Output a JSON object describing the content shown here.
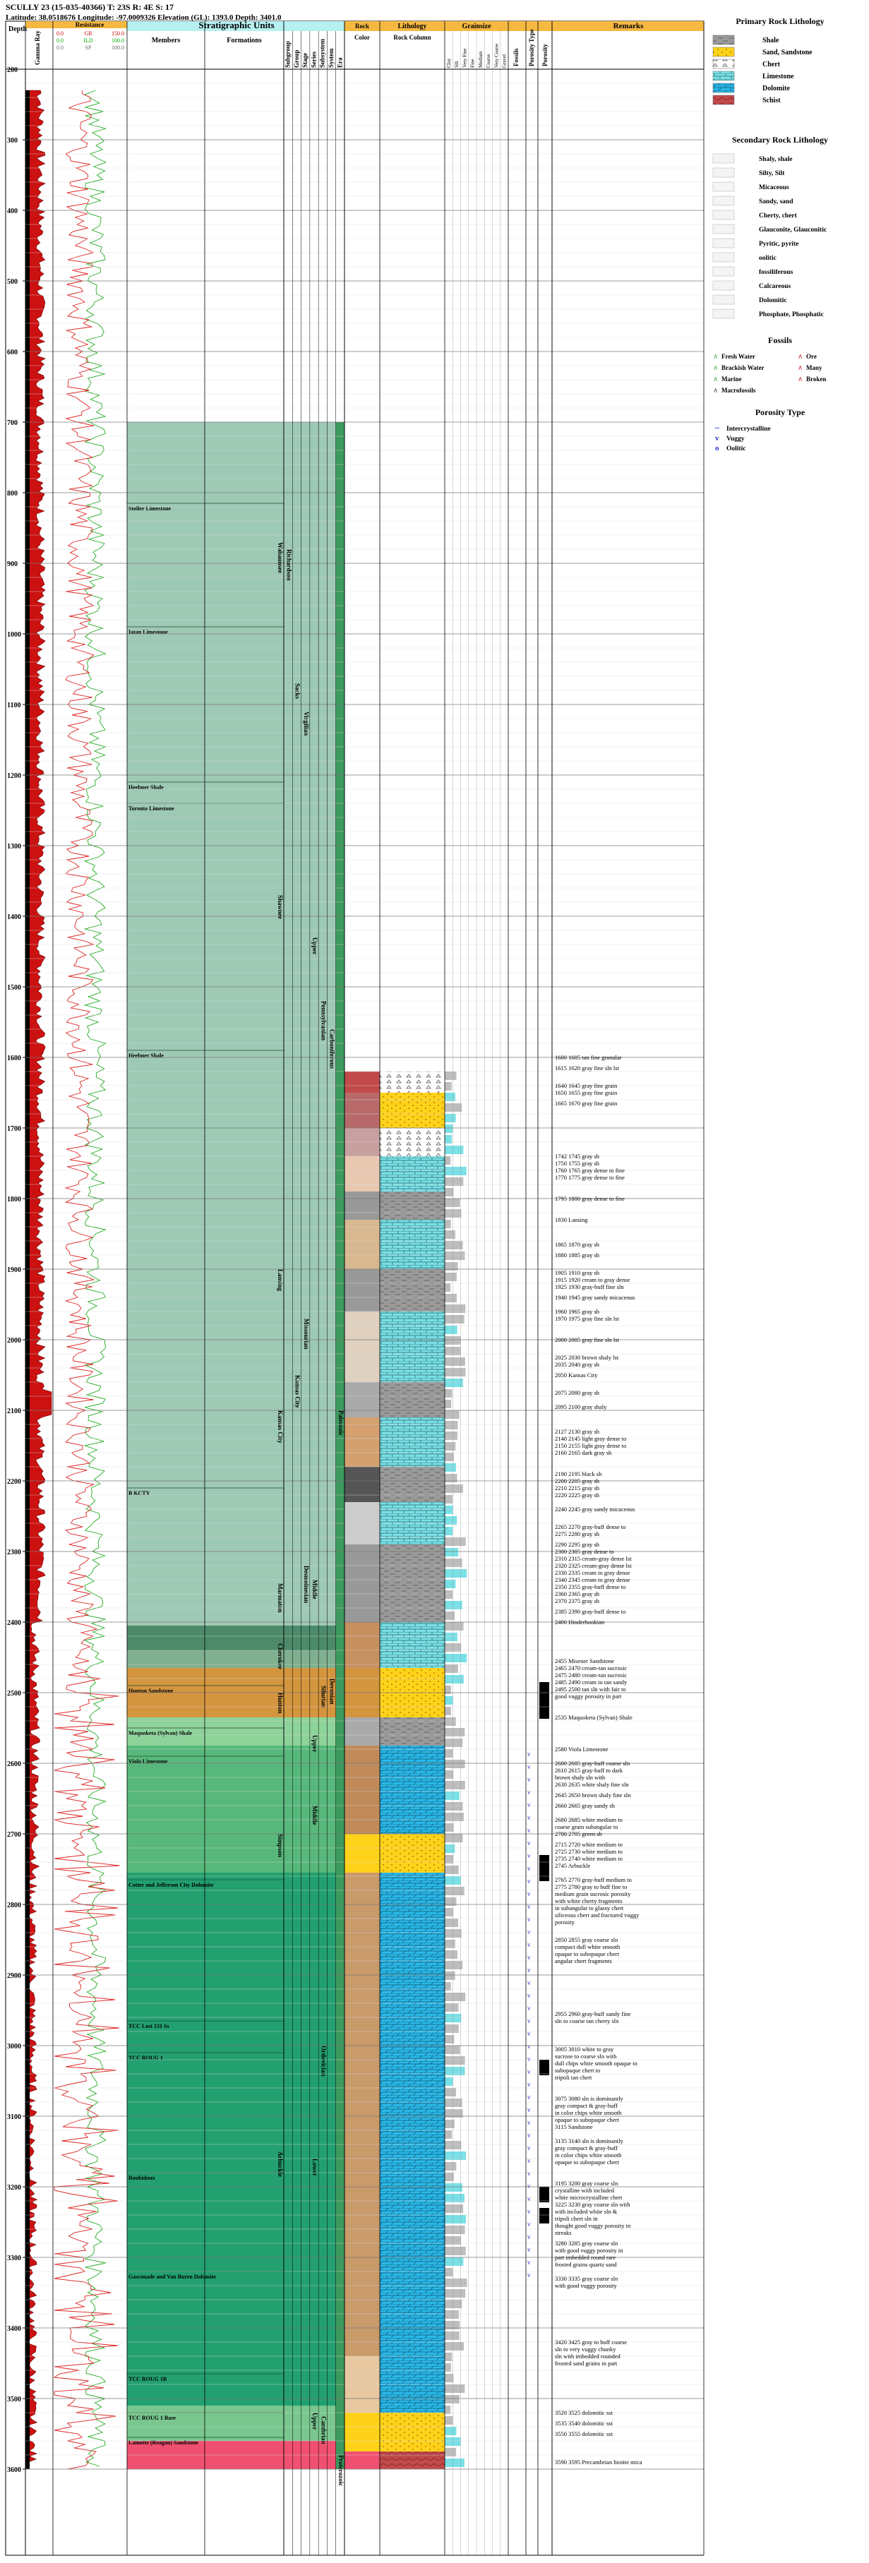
{
  "header": {
    "title_line": "SCULLY 23 (15-035-40366) T: 23S R: 4E S: 17",
    "coords_line": "Latitude: 38.0518676 Longitude: -97.0009326 Elevation (GL): 1393.0 Depth: 3401.0"
  },
  "columns": {
    "depth": "Depth",
    "gamma": "Gamma Ray",
    "resistance": "Resistance",
    "strat_units": "Stratigraphic Units",
    "members": "Members",
    "formations": "Formations",
    "rank_labels": [
      "Subgroup",
      "Group",
      "Stage",
      "Series",
      "Subsystem",
      "System",
      "Era"
    ],
    "rock": "Rock",
    "color": "Color",
    "lithology": "Lithology",
    "rock_column": "Rock Column",
    "grainsize": "Grainsize",
    "grain_classes": [
      "Clay",
      "Silt",
      "Very Fine",
      "Fine",
      "Medium",
      "Coarse",
      "Very Coarse",
      "Gravel"
    ],
    "fossils_col": "Fossils",
    "porosity_type_col": "Porosity Type",
    "porosity_col": "Porosity",
    "remarks": "Remarks"
  },
  "track_scales": {
    "gr": [
      "0.0",
      "GR",
      "150.0"
    ],
    "res": [
      "0.0",
      "ILD",
      "100.0"
    ],
    "sp": [
      "0.0",
      "SP",
      "100.0"
    ]
  },
  "depth_ticks": [
    "200",
    "300",
    "400",
    "500",
    "600",
    "700",
    "800",
    "900",
    "1000",
    "1100",
    "1200",
    "1300",
    "1400",
    "1500",
    "1600",
    "1700",
    "1800",
    "1900",
    "2000",
    "2100",
    "2200",
    "2300",
    "2400",
    "2500",
    "2600",
    "2700",
    "2800",
    "2900",
    "3000",
    "3100",
    "3200",
    "3300",
    "3400",
    "3500",
    "3600"
  ],
  "member_labels": [
    {
      "name": "Stoller Limestone",
      "depth": 815
    },
    {
      "name": "Iatan Limestone",
      "depth": 990
    },
    {
      "name": "Heebner Shale",
      "depth": 1210
    },
    {
      "name": "Toronto Limestone",
      "depth": 1240
    },
    {
      "name": "Heebner Shale",
      "depth": 1590
    },
    {
      "name": "B KCTY",
      "depth": 2210
    },
    {
      "name": "Hunton Sandstone",
      "depth": 2490
    },
    {
      "name": "Maquoketa (Sylvan) Shale",
      "depth": 2550
    },
    {
      "name": "Viola Limestone",
      "depth": 2590
    },
    {
      "name": "Cotter and Jefferson City Dolomite",
      "depth": 2765
    },
    {
      "name": "TCC Lost 131 Ss",
      "depth": 2965
    },
    {
      "name": "TCC ROUG 1",
      "depth": 3010
    },
    {
      "name": "Roubidoux",
      "depth": 3180
    },
    {
      "name": "Gasconade and Van Buren Dolomite",
      "depth": 3320
    },
    {
      "name": "TCC ROUG 1B",
      "depth": 3465
    },
    {
      "name": "TCC ROUG 1 Base",
      "depth": 3520
    },
    {
      "name": "Lamotte (Reagan) Sandstone",
      "depth": 3555
    }
  ],
  "formation_labels": [
    {
      "name": "Wabaunsee",
      "depth": 870
    },
    {
      "name": "Shawnee",
      "depth": 1370
    },
    {
      "name": "Lansing",
      "depth": 1900
    },
    {
      "name": "Kansas City",
      "depth": 2100
    },
    {
      "name": "Marmaton",
      "depth": 2345
    },
    {
      "name": "Cherokee",
      "depth": 2430
    },
    {
      "name": "Hunton",
      "depth": 2500
    },
    {
      "name": "Simpson",
      "depth": 2700
    },
    {
      "name": "Arbuckle",
      "depth": 3150
    }
  ],
  "rank_labels_placed": [
    {
      "col": 0,
      "name": "Richardson",
      "depth": 880
    },
    {
      "col": 1,
      "name": "Sacks",
      "depth": 1070
    },
    {
      "col": 1,
      "name": "Kansas City",
      "depth": 2050
    },
    {
      "col": 2,
      "name": "Virgilian",
      "depth": 1110
    },
    {
      "col": 2,
      "name": "Missourian",
      "depth": 1970
    },
    {
      "col": 2,
      "name": "Desmoinesian",
      "depth": 2320
    },
    {
      "col": 3,
      "name": "Upper",
      "depth": 1430
    },
    {
      "col": 3,
      "name": "Middle",
      "depth": 2340
    },
    {
      "col": 3,
      "name": "Upper",
      "depth": 2560
    },
    {
      "col": 3,
      "name": "Middle",
      "depth": 2660
    },
    {
      "col": 3,
      "name": "Lower",
      "depth": 3160
    },
    {
      "col": 3,
      "name": "Upper",
      "depth": 3520
    },
    {
      "col": 4,
      "name": "Pennsylvanian",
      "depth": 1520
    },
    {
      "col": 4,
      "name": "Silurian",
      "depth": 2490
    },
    {
      "col": 4,
      "name": "Ordovician",
      "depth": 3000
    },
    {
      "col": 4,
      "name": "Cambrian",
      "depth": 3525
    },
    {
      "col": 5,
      "name": "Carboniferous",
      "depth": 1560
    },
    {
      "col": 5,
      "name": "Devonian",
      "depth": 2480
    },
    {
      "col": 6,
      "name": "Paleozoic",
      "depth": 2100
    },
    {
      "col": 6,
      "name": "Proterozoic",
      "depth": 3580
    }
  ],
  "remarks": [
    {
      "depth": 1600,
      "text": "1600 1605 tan fine granular"
    },
    {
      "depth": 1615,
      "text": "1615 1620 gray fine sln lst"
    },
    {
      "depth": 1640,
      "text": "1640 1645 gray fine grain"
    },
    {
      "depth": 1650,
      "text": "1650 1655 gray fine grain"
    },
    {
      "depth": 1665,
      "text": "1665 1670 gray fine grain"
    },
    {
      "depth": 1740,
      "text": "1742 1745 gray sh"
    },
    {
      "depth": 1750,
      "text": "1750 1755 gray sh"
    },
    {
      "depth": 1760,
      "text": "1760 1765 gray dense to fine"
    },
    {
      "depth": 1770,
      "text": "1770 1775 gray dense to fine"
    },
    {
      "depth": 1800,
      "text": "1795 1800 gray dense to fine"
    },
    {
      "depth": 1830,
      "text": "1830 Lansing"
    },
    {
      "depth": 1865,
      "text": "1865 1870 gray sh"
    },
    {
      "depth": 1880,
      "text": "1880 1885 gray sh"
    },
    {
      "depth": 1905,
      "text": "1905 1910 gray sh"
    },
    {
      "depth": 1915,
      "text": "1915 1920 cream to gray dense"
    },
    {
      "depth": 1925,
      "text": "1925 1930 gray-buff fine sln"
    },
    {
      "depth": 1940,
      "text": "1940 1945 gray sandy micaceous"
    },
    {
      "depth": 1960,
      "text": "1960 1965 gray sh"
    },
    {
      "depth": 1970,
      "text": "1970 1975 gray fine sln lst"
    },
    {
      "depth": 2000,
      "text": "2000 2005 gray fine sln lst"
    },
    {
      "depth": 2025,
      "text": "2025 2030 brown shaly lst"
    },
    {
      "depth": 2035,
      "text": "2035 2040 gray sh"
    },
    {
      "depth": 2050,
      "text": "2050 Kansas City"
    },
    {
      "depth": 2075,
      "text": "2075 2080 gray sh"
    },
    {
      "depth": 2095,
      "text": "2095 2100 gray shaly"
    },
    {
      "depth": 2130,
      "text": "2127 2130 gray sh"
    },
    {
      "depth": 2140,
      "text": "2140 2145 light gray dense to"
    },
    {
      "depth": 2150,
      "text": "2150 2155 light gray dense to"
    },
    {
      "depth": 2160,
      "text": "2160 2165 dark gray sh"
    },
    {
      "depth": 2190,
      "text": "2190 2195 black sh"
    },
    {
      "depth": 2200,
      "text": "2200 2205 gray sh"
    },
    {
      "depth": 2210,
      "text": "2210 2215 gray sh"
    },
    {
      "depth": 2220,
      "text": "2220 2225 gray sh"
    },
    {
      "depth": 2240,
      "text": "2240 2245 gray sandy micaceous"
    },
    {
      "depth": 2265,
      "text": "2265 2270 gray-buff dense to"
    },
    {
      "depth": 2275,
      "text": "2275 2280 gray sh"
    },
    {
      "depth": 2290,
      "text": "2290 2295 gray sh"
    },
    {
      "depth": 2300,
      "text": "2300 2305 gray dense to"
    },
    {
      "depth": 2310,
      "text": "2310 2315 cream-gray dense lst"
    },
    {
      "depth": 2320,
      "text": "2320 2325 cream-gray dense lst"
    },
    {
      "depth": 2330,
      "text": "2330 2335 cream to gray dense"
    },
    {
      "depth": 2340,
      "text": "2340 2345 cream to gray dense"
    },
    {
      "depth": 2350,
      "text": "2350 2355 gray-buff dense to"
    },
    {
      "depth": 2360,
      "text": "2360 2365 gray sh"
    },
    {
      "depth": 2370,
      "text": "2370 2375 gray sh"
    },
    {
      "depth": 2385,
      "text": "2385 2390 gray-buff dense to"
    },
    {
      "depth": 2400,
      "text": "2400 Hinderhookian"
    },
    {
      "depth": 2455,
      "text": "2455 Misener Sandstone"
    },
    {
      "depth": 2465,
      "text": "2465 2470 cream-tan sucrosic"
    },
    {
      "depth": 2475,
      "text": "2475 2480 cream-tan sucrosic"
    },
    {
      "depth": 2485,
      "text": "2485 2490 cream to tan sandy"
    },
    {
      "depth": 2495,
      "text": "2495 2500 tan sln with fair to"
    },
    {
      "depth": 2505,
      "text": "good vuggy porosity in part"
    },
    {
      "depth": 2535,
      "text": "2535 Maquoketa (Sylvan) Shale"
    },
    {
      "depth": 2580,
      "text": "2580 Viola Limestone"
    },
    {
      "depth": 2600,
      "text": "2600 2605 gray-buff coarse sln"
    },
    {
      "depth": 2610,
      "text": "2610 2615 gray-buff to dark"
    },
    {
      "depth": 2620,
      "text": "brown shaly sln with"
    },
    {
      "depth": 2630,
      "text": "2630 2635 white shaly fine sln"
    },
    {
      "depth": 2645,
      "text": "2645 2650 brown shaly fine sln"
    },
    {
      "depth": 2660,
      "text": "2660 2665 gray sandy sh"
    },
    {
      "depth": 2680,
      "text": "2680 2685 white medium to"
    },
    {
      "depth": 2690,
      "text": "coarse grain subangular to"
    },
    {
      "depth": 2700,
      "text": "2700 2705 green sh"
    },
    {
      "depth": 2715,
      "text": "2715 2720 white medium to"
    },
    {
      "depth": 2725,
      "text": "2725 2730 white medium to"
    },
    {
      "depth": 2735,
      "text": "2735 2740 white medium to"
    },
    {
      "depth": 2745,
      "text": "2745 Arbuckle"
    },
    {
      "depth": 2765,
      "text": "2765 2770 gray-buff medium to"
    },
    {
      "depth": 2775,
      "text": "2775 2780 gray to buff fine to"
    },
    {
      "depth": 2785,
      "text": "medium grain sucrosic porosity"
    },
    {
      "depth": 2795,
      "text": "with white cherty fragments"
    },
    {
      "depth": 2805,
      "text": "in subangular to glassy chert"
    },
    {
      "depth": 2815,
      "text": "siliceous chert and fractured vuggy"
    },
    {
      "depth": 2825,
      "text": "porosity"
    },
    {
      "depth": 2850,
      "text": "2850 2855 gray coarse sln"
    },
    {
      "depth": 2860,
      "text": "compact dull white smooth"
    },
    {
      "depth": 2870,
      "text": "opaque to subopaque chert"
    },
    {
      "depth": 2880,
      "text": "angular chert fragments"
    },
    {
      "depth": 2955,
      "text": "2955 2960 gray-buff sandy fine"
    },
    {
      "depth": 2965,
      "text": "sln to coarse tan cherty sln"
    },
    {
      "depth": 3005,
      "text": "3005 3010 white to gray"
    },
    {
      "depth": 3015,
      "text": "sucrose to coarse sln with"
    },
    {
      "depth": 3025,
      "text": "dull chips white smooth opaque to"
    },
    {
      "depth": 3035,
      "text": "subopaque chert to"
    },
    {
      "depth": 3045,
      "text": "tripoli tan chert"
    },
    {
      "depth": 3075,
      "text": "3075 3080 sln is dominantly"
    },
    {
      "depth": 3085,
      "text": "gray compact & gray-buff"
    },
    {
      "depth": 3095,
      "text": "in color chips white smooth"
    },
    {
      "depth": 3105,
      "text": "opaque to subopaque chert"
    },
    {
      "depth": 3115,
      "text": "3115 Sandstone"
    },
    {
      "depth": 3135,
      "text": "3135 3140 sln is dominantly"
    },
    {
      "depth": 3145,
      "text": "gray compact & gray-buff"
    },
    {
      "depth": 3155,
      "text": "in color chips white smooth"
    },
    {
      "depth": 3165,
      "text": "opaque to subopaque chert"
    },
    {
      "depth": 3195,
      "text": "3195 3200 gray coarse sln"
    },
    {
      "depth": 3205,
      "text": "crystalline with included"
    },
    {
      "depth": 3215,
      "text": "white microcrystalline chert"
    },
    {
      "depth": 3225,
      "text": "3225 3230 gray coarse sln with"
    },
    {
      "depth": 3235,
      "text": "with included white sln &"
    },
    {
      "depth": 3245,
      "text": "tripoli chert sln in"
    },
    {
      "depth": 3255,
      "text": "thought good vuggy porosity in"
    },
    {
      "depth": 3265,
      "text": "streaks"
    },
    {
      "depth": 3280,
      "text": "3280 3285 gray coarse sln"
    },
    {
      "depth": 3290,
      "text": "with good vuggy porosity in"
    },
    {
      "depth": 3300,
      "text": "part imbedded round rare"
    },
    {
      "depth": 3310,
      "text": "frosted grains quartz sand"
    },
    {
      "depth": 3330,
      "text": "3330 3335 gray coarse sln"
    },
    {
      "depth": 3340,
      "text": "with good vuggy porosity"
    },
    {
      "depth": 3420,
      "text": "3420 3425 gray to buff coarse"
    },
    {
      "depth": 3430,
      "text": "sln to very vuggy chunky"
    },
    {
      "depth": 3440,
      "text": "sln with imbedded rounded"
    },
    {
      "depth": 3450,
      "text": "frosted sand grains in part"
    },
    {
      "depth": 3520,
      "text": "3520 3525 dolomitic sst"
    },
    {
      "depth": 3535,
      "text": "3535 3540 dolomitic sst"
    },
    {
      "depth": 3550,
      "text": "3550 3555 dolomitic sst"
    },
    {
      "depth": 3590,
      "text": "3590 3595 Precambrian biotite mica"
    }
  ],
  "legend": {
    "primary_title": "Primary Rock Lithology",
    "primary": [
      {
        "label": "Shale",
        "pattern": "shale"
      },
      {
        "label": "Sand, Sandstone",
        "pattern": "sand"
      },
      {
        "label": "Chert",
        "pattern": "chert"
      },
      {
        "label": "Limestone",
        "pattern": "lime"
      },
      {
        "label": "Dolomite",
        "pattern": "dolo"
      },
      {
        "label": "Schist",
        "pattern": "schist"
      }
    ],
    "secondary_title": "Secondary Rock Lithology",
    "secondary": [
      "Shaly, shale",
      "Silty, Silt",
      "Micaceous",
      "Sandy, sand",
      "Cherty, chert",
      "Glauconite, Glauconitic",
      "Pyritic, pyrite",
      "oolitic",
      "fossiliferous",
      "Calcareous",
      "Dolomitic",
      "Phosphate, Phosphatic"
    ],
    "fossils_title": "Fossils",
    "fossils": [
      {
        "label": "Fresh Water",
        "col": 0,
        "row": 0,
        "color": "#4aa84a"
      },
      {
        "label": "Ore",
        "col": 1,
        "row": 0,
        "color": "#cc3333"
      },
      {
        "label": "Brackish Water",
        "col": 0,
        "row": 1,
        "color": "#4aa84a"
      },
      {
        "label": "Many",
        "col": 1,
        "row": 1,
        "color": "#cc3333"
      },
      {
        "label": "Marine",
        "col": 0,
        "row": 2,
        "color": "#4aa84a"
      },
      {
        "label": "Broken",
        "col": 1,
        "row": 2,
        "color": "#cc3333"
      },
      {
        "label": "Macrofossils",
        "col": 0,
        "row": 3,
        "color": "#555555"
      }
    ],
    "porosity_title": "Porosity Type",
    "porosity": [
      {
        "label": "Intercrystalline",
        "mark": "~"
      },
      {
        "label": "Vuggy",
        "mark": "v"
      },
      {
        "label": "Oolitic",
        "mark": "o"
      }
    ]
  },
  "colors": {
    "header_orange": "#f5b942",
    "header_cyan": "#b7f0f0",
    "strat_upper": "#9ec9b5",
    "strat_dark": "#4c8a6a",
    "strat_mid": "#58b87c",
    "strat_deep": "#23a070",
    "hunton": "#d4953f",
    "base_pink": "#f05070",
    "dolomite": "#29b8e8",
    "limestone": "#79e0e6",
    "sand": "#ffd21a",
    "shale": "#999999",
    "gr_fill": "#cc1111"
  }
}
